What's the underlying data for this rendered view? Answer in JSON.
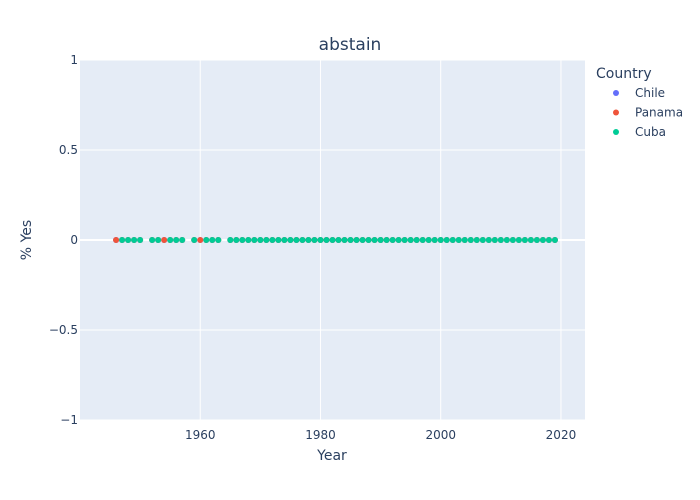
{
  "chart_data": {
    "type": "scatter",
    "title": "abstain",
    "xlabel": "Year",
    "ylabel": "% Yes",
    "xlim": [
      1940,
      2024
    ],
    "ylim": [
      -1,
      1
    ],
    "x_ticks": [
      1960,
      1980,
      2000,
      2020
    ],
    "y_ticks": [
      -1,
      -0.5,
      0,
      0.5,
      1
    ],
    "y_tick_labels": [
      "−1",
      "−0.5",
      "0",
      "0.5",
      "1"
    ],
    "grid": true,
    "legend": {
      "title": "Country",
      "placement": "top-right"
    },
    "series": [
      {
        "name": "Chile",
        "color": "#636efa",
        "x": [
          1946,
          1947,
          1948,
          1949,
          1950,
          1952,
          1953,
          1954,
          1955,
          1956,
          1957,
          1959,
          1960,
          1961,
          1962,
          1963,
          1965,
          1966,
          1967,
          1968,
          1969,
          1970,
          1971,
          1972,
          1973,
          1974,
          1975,
          1976,
          1977,
          1978,
          1979,
          1980,
          1981,
          1982,
          1983,
          1984,
          1985,
          1986,
          1987,
          1988,
          1989,
          1990,
          1991,
          1992,
          1993,
          1994,
          1995,
          1996,
          1997,
          1998,
          1999,
          2000,
          2001,
          2002,
          2003,
          2004,
          2005,
          2006,
          2007,
          2008,
          2009,
          2010,
          2011,
          2012,
          2013,
          2014,
          2015,
          2016,
          2017,
          2018,
          2019
        ],
        "y": [
          0,
          0,
          0,
          0,
          0,
          0,
          0,
          0,
          0,
          0,
          0,
          0,
          0,
          0,
          0,
          0,
          0,
          0,
          0,
          0,
          0,
          0,
          0,
          0,
          0,
          0,
          0,
          0,
          0,
          0,
          0,
          0,
          0,
          0,
          0,
          0,
          0,
          0,
          0,
          0,
          0,
          0,
          0,
          0,
          0,
          0,
          0,
          0,
          0,
          0,
          0,
          0,
          0,
          0,
          0,
          0,
          0,
          0,
          0,
          0,
          0,
          0,
          0,
          0,
          0,
          0,
          0,
          0,
          0,
          0,
          0
        ]
      },
      {
        "name": "Panama",
        "color": "#ef553b",
        "x": [
          1946,
          1947,
          1948,
          1949,
          1950,
          1952,
          1953,
          1954,
          1955,
          1956,
          1957,
          1959,
          1960,
          1961,
          1962,
          1963,
          1965,
          1966,
          1967,
          1968,
          1969,
          1970,
          1971,
          1972,
          1973,
          1974,
          1975,
          1976,
          1977,
          1978,
          1979,
          1980,
          1981,
          1982,
          1983,
          1984,
          1985,
          1986,
          1987,
          1988,
          1989,
          1990,
          1991,
          1992,
          1993,
          1994,
          1995,
          1996,
          1997,
          1998,
          1999,
          2000,
          2001,
          2002,
          2003,
          2004,
          2005,
          2006,
          2007,
          2008,
          2009,
          2010,
          2011,
          2012,
          2013,
          2014,
          2015,
          2016,
          2017,
          2018,
          2019
        ],
        "y": [
          0,
          0,
          0,
          0,
          0,
          0,
          0,
          0,
          0,
          0,
          0,
          0,
          0,
          0,
          0,
          0,
          0,
          0,
          0,
          0,
          0,
          0,
          0,
          0,
          0,
          0,
          0,
          0,
          0,
          0,
          0,
          0,
          0,
          0,
          0,
          0,
          0,
          0,
          0,
          0,
          0,
          0,
          0,
          0,
          0,
          0,
          0,
          0,
          0,
          0,
          0,
          0,
          0,
          0,
          0,
          0,
          0,
          0,
          0,
          0,
          0,
          0,
          0,
          0,
          0,
          0,
          0,
          0,
          0,
          0,
          0
        ]
      },
      {
        "name": "Cuba",
        "color": "#00cc96",
        "x": [
          1947,
          1948,
          1949,
          1950,
          1952,
          1953,
          1955,
          1956,
          1957,
          1959,
          1961,
          1962,
          1963,
          1965,
          1966,
          1967,
          1968,
          1969,
          1970,
          1971,
          1972,
          1973,
          1974,
          1975,
          1976,
          1977,
          1978,
          1979,
          1980,
          1981,
          1982,
          1983,
          1984,
          1985,
          1986,
          1987,
          1988,
          1989,
          1990,
          1991,
          1992,
          1993,
          1994,
          1995,
          1996,
          1997,
          1998,
          1999,
          2000,
          2001,
          2002,
          2003,
          2004,
          2005,
          2006,
          2007,
          2008,
          2009,
          2010,
          2011,
          2012,
          2013,
          2014,
          2015,
          2016,
          2017,
          2018,
          2019
        ],
        "y": [
          0,
          0,
          0,
          0,
          0,
          0,
          0,
          0,
          0,
          0,
          0,
          0,
          0,
          0,
          0,
          0,
          0,
          0,
          0,
          0,
          0,
          0,
          0,
          0,
          0,
          0,
          0,
          0,
          0,
          0,
          0,
          0,
          0,
          0,
          0,
          0,
          0,
          0,
          0,
          0,
          0,
          0,
          0,
          0,
          0,
          0,
          0,
          0,
          0,
          0,
          0,
          0,
          0,
          0,
          0,
          0,
          0,
          0,
          0,
          0,
          0,
          0,
          0,
          0,
          0,
          0,
          0,
          0
        ]
      }
    ]
  },
  "colors": {
    "plot_background": "#e5ecf6",
    "grid": "#ffffff",
    "text": "#2a3f5f"
  }
}
